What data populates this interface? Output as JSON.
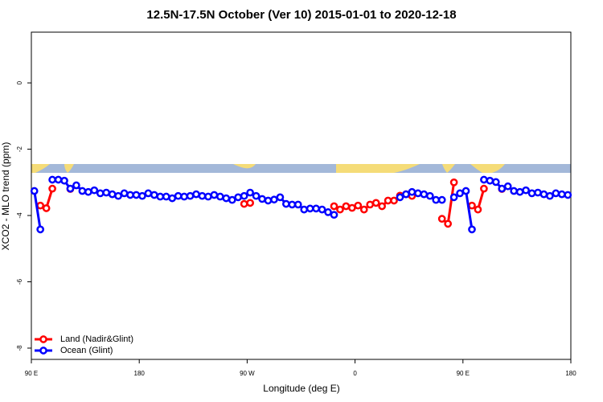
{
  "chart_data": {
    "type": "line",
    "title": "12.5N-17.5N October (Ver 10)   2015-01-01 to 2020-12-18",
    "x_label": "Longitude (deg E)",
    "y_label": "XCO2 - MLO trend (ppm)",
    "x": [
      92.5,
      97.5,
      102.5,
      107.5,
      112.5,
      117.5,
      122.5,
      127.5,
      132.5,
      137.5,
      142.5,
      147.5,
      152.5,
      157.5,
      162.5,
      167.5,
      172.5,
      177.5,
      182.5,
      187.5,
      192.5,
      197.5,
      202.5,
      207.5,
      212.5,
      217.5,
      222.5,
      227.5,
      232.5,
      237.5,
      242.5,
      247.5,
      252.5,
      257.5,
      262.5,
      267.5,
      272.5,
      277.5,
      282.5,
      287.5,
      292.5,
      297.5,
      302.5,
      307.5,
      312.5,
      317.5,
      322.5,
      327.5,
      332.5,
      337.5,
      342.5,
      347.5,
      352.5,
      357.5,
      362.5,
      367.5,
      372.5,
      377.5,
      382.5,
      387.5,
      392.5,
      397.5,
      402.5,
      407.5,
      412.5,
      417.5,
      422.5,
      427.5,
      432.5,
      437.5,
      442.5,
      447.5,
      452.5,
      457.5,
      462.5,
      467.5,
      472.5,
      477.5,
      482.5,
      487.5,
      492.5,
      497.5,
      502.5,
      507.5,
      512.5,
      517.5,
      522.5,
      527.5,
      532.5,
      537.5
    ],
    "series": [
      {
        "name": "Land (Nadir&Glint)",
        "color": "#ff0000",
        "values": [
          null,
          -3.7,
          -3.78,
          -3.19,
          null,
          null,
          -3.2,
          null,
          null,
          null,
          null,
          null,
          null,
          null,
          null,
          null,
          null,
          null,
          null,
          null,
          null,
          null,
          null,
          null,
          null,
          null,
          null,
          null,
          null,
          null,
          null,
          null,
          null,
          null,
          null,
          -3.65,
          -3.62,
          null,
          null,
          null,
          null,
          null,
          null,
          null,
          null,
          null,
          null,
          null,
          null,
          null,
          -3.72,
          -3.82,
          -3.72,
          -3.77,
          -3.7,
          -3.82,
          -3.67,
          -3.62,
          -3.72,
          -3.55,
          -3.55,
          -3.4,
          -3.36,
          -3.41,
          null,
          null,
          null,
          null,
          -4.1,
          -4.25,
          -3.0,
          null,
          null,
          -3.7,
          -3.82,
          -3.19,
          null,
          null,
          -3.2,
          null,
          null,
          null,
          null,
          null,
          null,
          null,
          null,
          null,
          null,
          null
        ]
      },
      {
        "name": "Ocean (Glint)",
        "color": "#0000ff",
        "values": [
          -3.26,
          -4.42,
          null,
          -2.92,
          -2.92,
          -2.95,
          -3.19,
          -3.09,
          -3.26,
          -3.29,
          -3.24,
          -3.33,
          -3.31,
          -3.36,
          -3.41,
          -3.33,
          -3.38,
          -3.38,
          -3.41,
          -3.33,
          -3.38,
          -3.43,
          -3.43,
          -3.48,
          -3.41,
          -3.43,
          -3.41,
          -3.36,
          -3.41,
          -3.43,
          -3.38,
          -3.43,
          -3.48,
          -3.53,
          -3.45,
          -3.41,
          -3.31,
          -3.41,
          -3.5,
          -3.55,
          -3.52,
          -3.45,
          -3.65,
          -3.67,
          -3.67,
          -3.82,
          -3.79,
          -3.79,
          -3.82,
          -3.9,
          -3.98,
          null,
          null,
          null,
          null,
          null,
          null,
          null,
          null,
          null,
          null,
          -3.45,
          -3.36,
          -3.29,
          -3.33,
          -3.36,
          -3.41,
          -3.53,
          -3.53,
          null,
          -3.45,
          -3.33,
          -3.26,
          -4.42,
          null,
          -2.92,
          -2.95,
          -2.99,
          -3.19,
          -3.12,
          -3.26,
          -3.29,
          -3.24,
          -3.33,
          -3.31,
          -3.36,
          -3.41,
          -3.33,
          -3.36,
          -3.38
        ]
      }
    ],
    "xlim": [
      90,
      540
    ],
    "xticks": [
      {
        "value": 90,
        "label": "90 E"
      },
      180,
      {
        "value": 270,
        "label": "90 W"
      },
      {
        "value": 360,
        "label": "0"
      },
      {
        "value": 450,
        "label": "90 E"
      },
      {
        "value": 540,
        "label": "180"
      }
    ],
    "ylim": [
      -8.34,
      1.53
    ],
    "yticks": [
      -8,
      -6,
      -4,
      -2,
      0
    ],
    "legend": "bottom-left"
  }
}
